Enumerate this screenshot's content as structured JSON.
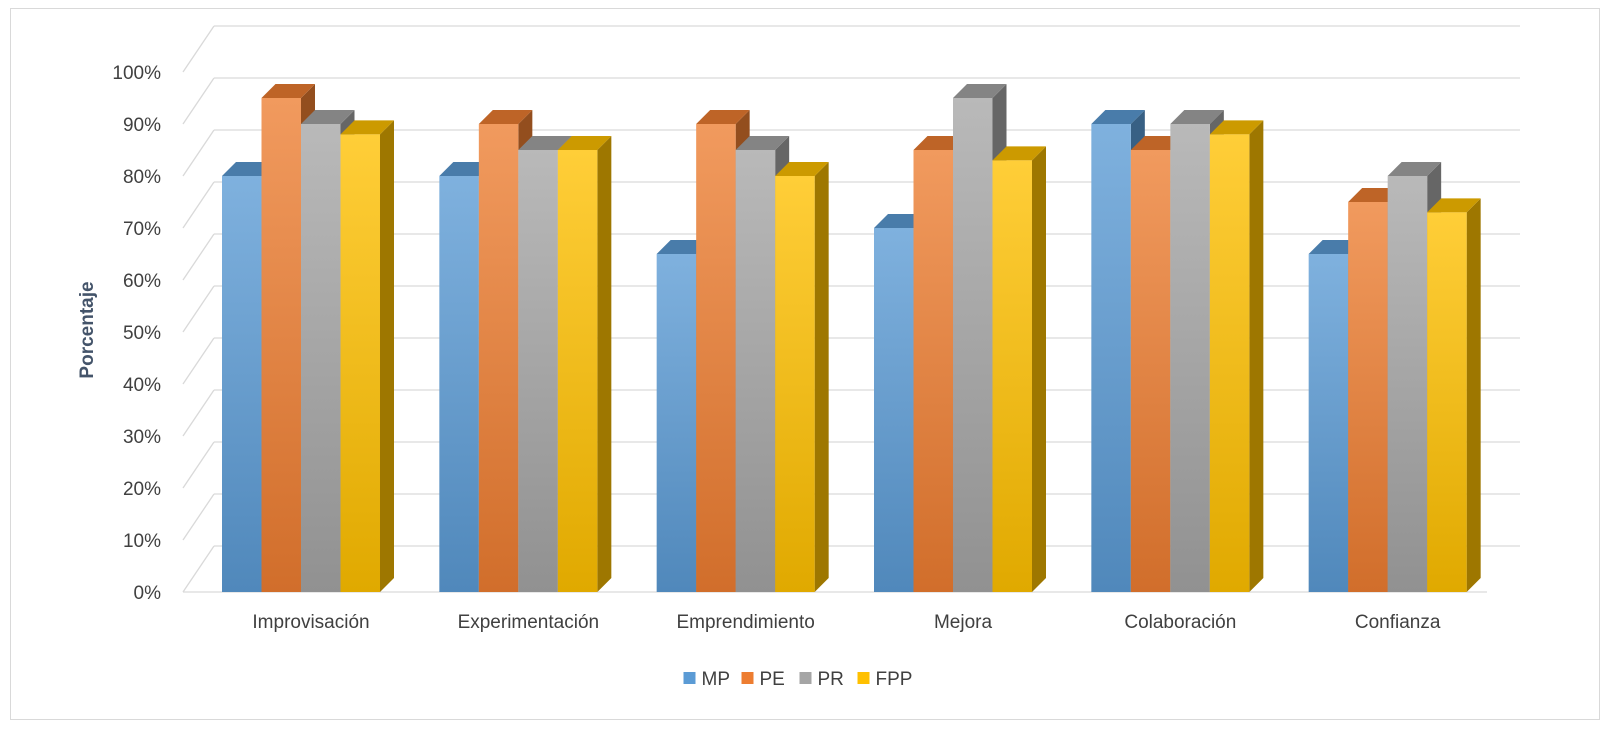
{
  "chart_data": {
    "type": "bar",
    "title": "",
    "xlabel": "",
    "ylabel": "Porcentaje",
    "categories": [
      "Improvisación",
      "Experimentación",
      "Emprendimiento",
      "Mejora",
      "Colaboración",
      "Confianza"
    ],
    "series": [
      {
        "name": "MP",
        "color": "#5b9bd5",
        "values": [
          80,
          80,
          65,
          70,
          90,
          65
        ]
      },
      {
        "name": "PE",
        "color": "#ed7d31",
        "values": [
          95,
          90,
          90,
          85,
          85,
          75
        ]
      },
      {
        "name": "PR",
        "color": "#a5a5a5",
        "values": [
          90,
          85,
          85,
          95,
          90,
          80
        ]
      },
      {
        "name": "FPP",
        "color": "#ffc000",
        "values": [
          88,
          85,
          80,
          83,
          88,
          73
        ]
      }
    ],
    "yticks": [
      "0%",
      "10%",
      "20%",
      "30%",
      "40%",
      "50%",
      "60%",
      "70%",
      "80%",
      "90%",
      "100%"
    ],
    "ylim": [
      0,
      100
    ],
    "grid": true,
    "legend": "bottom",
    "style": "3d-clustered-column"
  }
}
